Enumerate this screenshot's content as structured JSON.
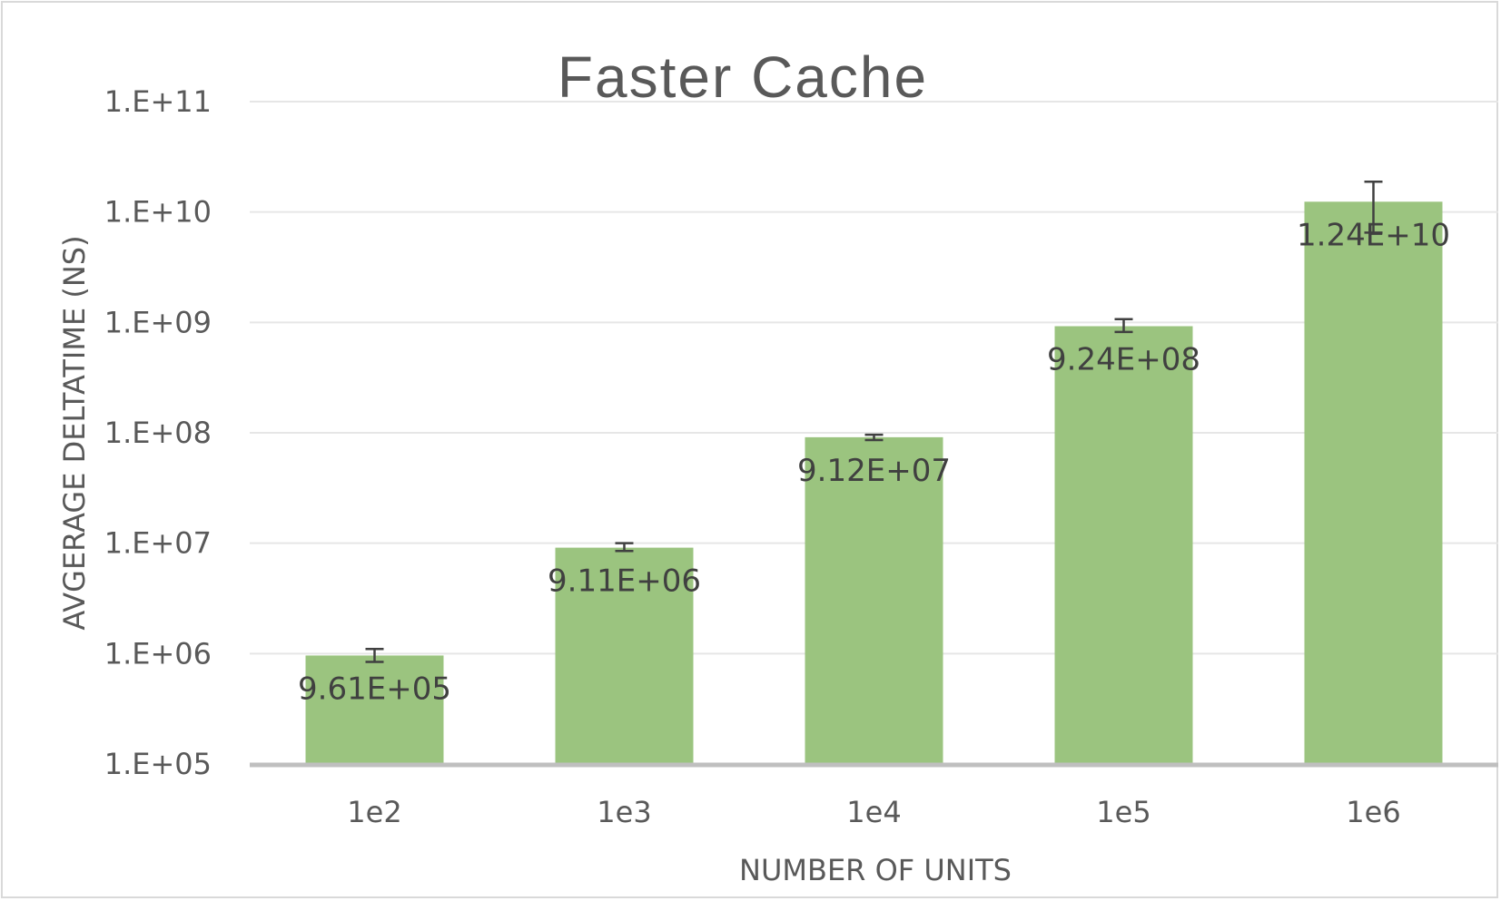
{
  "chart_data": {
    "type": "bar",
    "title": "Faster Cache",
    "xlabel": "NUMBER OF UNITS",
    "ylabel": "AVGERAGE DELTATIME (NS)",
    "categories": [
      "1e2",
      "1e3",
      "1e4",
      "1e5",
      "1e6"
    ],
    "values": [
      961000,
      9110000,
      91200000,
      924000000,
      12400000000
    ],
    "data_labels": [
      "9.61E+05",
      "9.11E+06",
      "9.12E+07",
      "9.24E+08",
      "1.24E+10"
    ],
    "error_bars": [
      {
        "low": 840000,
        "high": 1100000
      },
      {
        "low": 8500000,
        "high": 10000000
      },
      {
        "low": 86000000,
        "high": 96000000
      },
      {
        "low": 820000000,
        "high": 1070000000
      },
      {
        "low": 6500000000,
        "high": 18800000000
      }
    ],
    "y_scale": "log",
    "ylim": [
      100000,
      100000000000
    ],
    "y_ticks": [
      100000,
      1000000,
      10000000,
      100000000,
      1000000000,
      10000000000,
      100000000000
    ],
    "y_tick_labels": [
      "1.E+05",
      "1.E+06",
      "1.E+07",
      "1.E+08",
      "1.E+09",
      "1.E+10",
      "1.E+11"
    ],
    "grid": true,
    "colors": {
      "bar": "#9bc47f",
      "error_bar": "#404040",
      "gridline": "#e6e6e6",
      "axis_line": "#bfbfbf",
      "text": "#595959",
      "border": "#d9d9d9"
    }
  }
}
